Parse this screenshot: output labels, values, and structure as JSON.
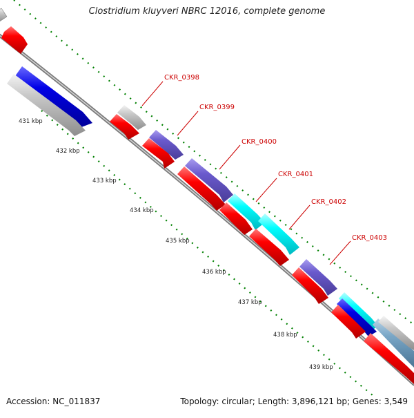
{
  "header": {
    "title": "Clostridium kluyveri NBRC 12016, complete genome"
  },
  "footer": {
    "accession": "Accession: NC_011837",
    "summary": "Topology: circular; Length: 3,896,121 bp; Genes: 3,549"
  },
  "ticks": [
    {
      "label": "431 kbp"
    },
    {
      "label": "432 kbp"
    },
    {
      "label": "433 kbp"
    },
    {
      "label": "434 kbp"
    },
    {
      "label": "435 kbp"
    },
    {
      "label": "436 kbp"
    },
    {
      "label": "437 kbp"
    },
    {
      "label": "438 kbp"
    },
    {
      "label": "439 kbp"
    }
  ],
  "genes": [
    {
      "label": "CKR_0398"
    },
    {
      "label": "CKR_0399"
    },
    {
      "label": "CKR_0400"
    },
    {
      "label": "CKR_0401"
    },
    {
      "label": "CKR_0402"
    },
    {
      "label": "CKR_0403"
    }
  ],
  "colors": {
    "cds_red": "#ff0000",
    "blue": "#0000e6",
    "slate_blue": "#6a5acd",
    "cyan": "#00ffff",
    "gray": "#c8c8c8",
    "backbone": "#8a8a8a",
    "tick_green": "#008000",
    "label_red": "#cc0000"
  }
}
